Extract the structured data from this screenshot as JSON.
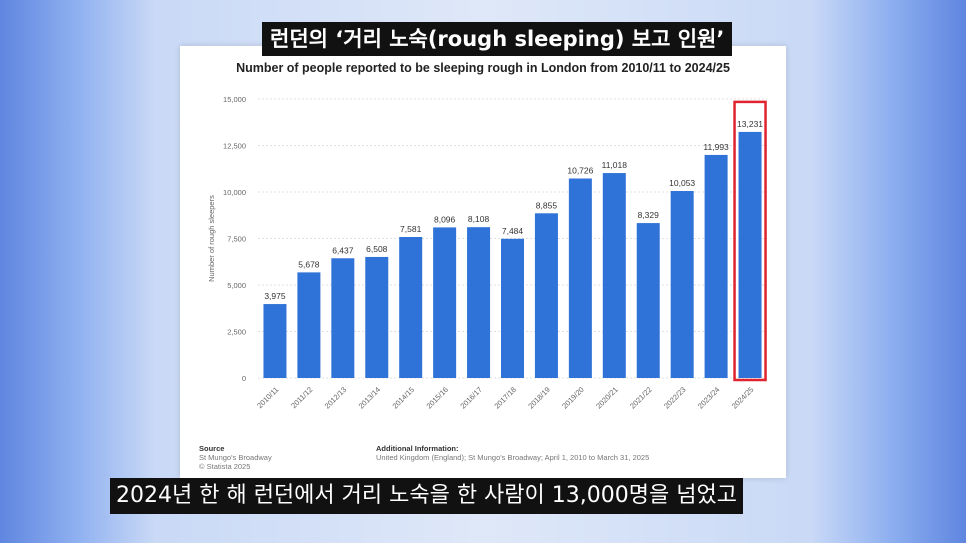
{
  "top_caption": "런던의 ‘거리 노숙(rough sleeping) 보고 인원’",
  "bottom_subtitle": "2024년 한 해 런던에서 거리 노숙을 한 사람이 13,000명을 넘었고",
  "chart_data": {
    "type": "bar",
    "title": "Number of people reported to be sleeping rough in London from 2010/11 to 2024/25",
    "ylabel": "Number of rough sleepers",
    "xlabel": "",
    "ylim": [
      0,
      15000
    ],
    "yticks": [
      0,
      2500,
      5000,
      7500,
      10000,
      12500,
      15000
    ],
    "ytick_labels": [
      "0",
      "2,500",
      "5,000",
      "7,500",
      "10,000",
      "12,500",
      "15,000"
    ],
    "grid": "horizontal dashed",
    "bar_color": "#2f72d8",
    "highlight_color": "#e0232e",
    "highlight_index": 14,
    "categories": [
      "2010/11",
      "2011/12",
      "2012/13",
      "2013/14",
      "2014/15",
      "2015/16",
      "2016/17",
      "2017/18",
      "2018/19",
      "2019/20",
      "2020/21",
      "2021/22",
      "2022/23",
      "2023/24",
      "2024/25"
    ],
    "values": [
      3975,
      5678,
      6437,
      6508,
      7581,
      8096,
      8108,
      7484,
      8855,
      10726,
      11018,
      8329,
      10053,
      11993,
      13231
    ],
    "value_labels": [
      "3,975",
      "5,678",
      "6,437",
      "6,508",
      "7,581",
      "8,096",
      "8,108",
      "7,484",
      "8,855",
      "10,726",
      "11,018",
      "8,329",
      "10,053",
      "11,993",
      "13,231"
    ]
  },
  "source": {
    "heading": "Source",
    "line1": "St Mungo's Broadway",
    "line2": "© Statista 2025"
  },
  "additional_info": {
    "heading": "Additional Information:",
    "text": "United Kingdom (England); St Mungo's Broadway; April 1, 2010 to March 31, 2025"
  }
}
